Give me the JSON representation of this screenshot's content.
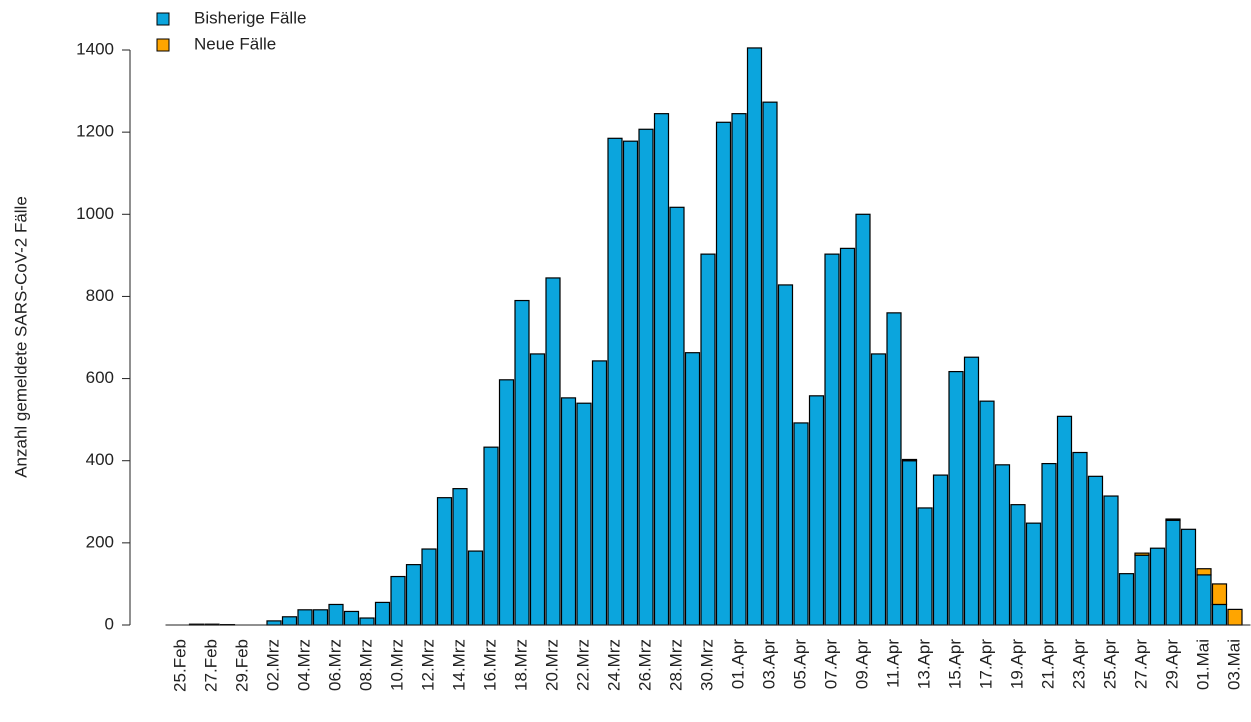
{
  "chart_data": {
    "type": "bar",
    "stacked": true,
    "y_label": "Anzahl gemeldete SARS-CoV-2 Fälle",
    "categories": [
      "25.Feb",
      null,
      "27.Feb",
      null,
      "29.Feb",
      null,
      "02.Mrz",
      null,
      "04.Mrz",
      null,
      "06.Mrz",
      null,
      "08.Mrz",
      null,
      "10.Mrz",
      null,
      "12.Mrz",
      null,
      "14.Mrz",
      null,
      "16.Mrz",
      null,
      "18.Mrz",
      null,
      "20.Mrz",
      null,
      "22.Mrz",
      null,
      "24.Mrz",
      null,
      "26.Mrz",
      null,
      "28.Mrz",
      null,
      "30.Mrz",
      null,
      "01.Apr",
      null,
      "03.Apr",
      null,
      "05.Apr",
      null,
      "07.Apr",
      null,
      "09.Apr",
      null,
      "11.Apr",
      null,
      "13.Apr",
      null,
      "15.Apr",
      null,
      "17.Apr",
      null,
      "19.Apr",
      null,
      "21.Apr",
      null,
      "23.Apr",
      null,
      "25.Apr",
      null,
      "27.Apr",
      null,
      "29.Apr",
      null,
      "01.Mai",
      null,
      "03.Mai"
    ],
    "series": [
      {
        "name": "Bisherige Fälle",
        "color": "#0ba5dd",
        "values": [
          0,
          2,
          2,
          1,
          0,
          0,
          10,
          20,
          37,
          37,
          50,
          33,
          17,
          55,
          118,
          147,
          185,
          310,
          332,
          180,
          433,
          597,
          790,
          660,
          845,
          553,
          540,
          643,
          1185,
          1178,
          1207,
          1245,
          1017,
          663,
          903,
          1224,
          1245,
          1405,
          1273,
          828,
          492,
          558,
          903,
          917,
          1000,
          660,
          760,
          400,
          285,
          365,
          617,
          652,
          545,
          390,
          293,
          248,
          393,
          508,
          420,
          362,
          314,
          125,
          170,
          187,
          255,
          233,
          122,
          50,
          0
        ]
      },
      {
        "name": "Neue Fälle",
        "color": "#ffa500",
        "values": [
          0,
          0,
          0,
          0,
          0,
          0,
          0,
          0,
          0,
          0,
          0,
          0,
          0,
          0,
          0,
          0,
          0,
          0,
          0,
          0,
          0,
          0,
          0,
          0,
          0,
          0,
          0,
          0,
          0,
          0,
          0,
          0,
          0,
          0,
          0,
          0,
          0,
          0,
          0,
          0,
          0,
          0,
          0,
          0,
          0,
          0,
          0,
          3,
          0,
          0,
          0,
          0,
          0,
          0,
          0,
          0,
          0,
          0,
          0,
          0,
          0,
          0,
          5,
          0,
          3,
          0,
          15,
          50,
          38
        ]
      }
    ],
    "ylim": [
      0,
      1400
    ],
    "yticks": [
      0,
      200,
      400,
      600,
      800,
      1000,
      1200,
      1400
    ],
    "grid": false,
    "legend": "top-left"
  }
}
